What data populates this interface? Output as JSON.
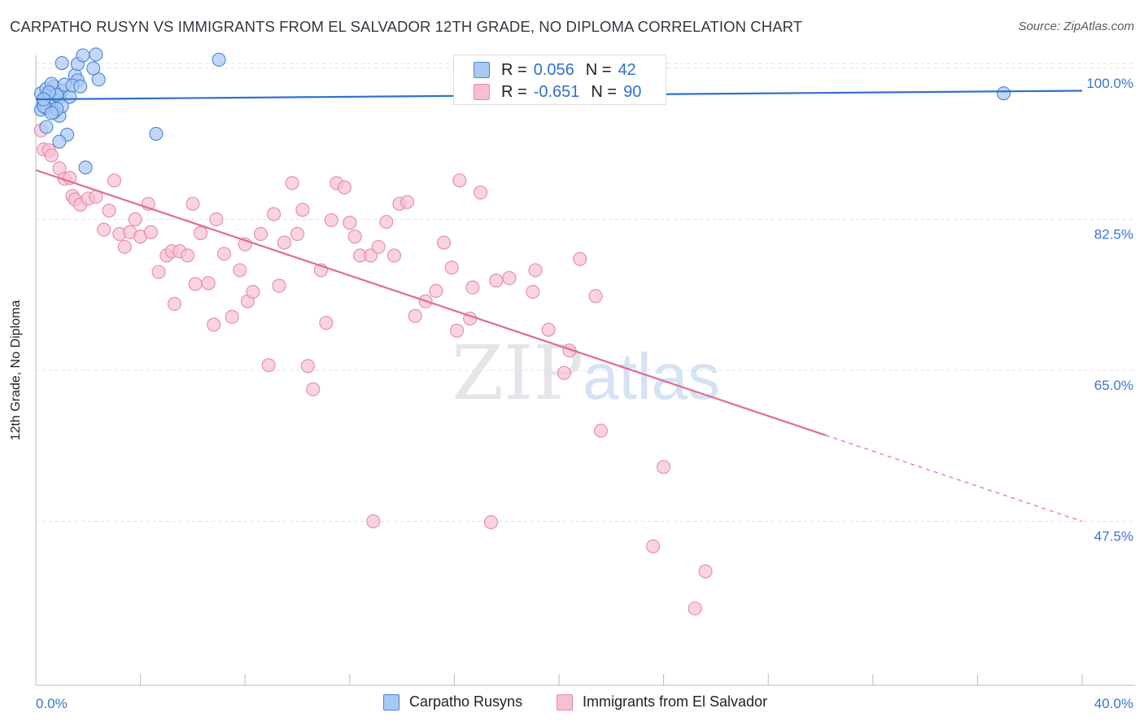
{
  "title": "CARPATHO RUSYN VS IMMIGRANTS FROM EL SALVADOR 12TH GRADE, NO DIPLOMA CORRELATION CHART",
  "source": "Source: ZipAtlas.com",
  "watermark": {
    "part1": "ZIP",
    "part2": "atlas"
  },
  "legend": {
    "r_label": "R =",
    "n_label": "N =",
    "series": [
      {
        "name": "Carpatho Rusyns",
        "r": "0.056",
        "n": "42"
      },
      {
        "name": "Immigrants from El Salvador",
        "r": "-0.651",
        "n": "90"
      }
    ]
  },
  "colors": {
    "blue_fill": "#a9c8f2",
    "blue_stroke": "#4a86d6",
    "blue_line": "#2f6fd0",
    "pink_fill": "#f6c0d2",
    "pink_stroke": "#e58aa8",
    "pink_line": "#e06b97",
    "tick_label": "#3a76cf",
    "grid": "#dcdfe4"
  },
  "chart_data": {
    "type": "scatter",
    "title": "CARPATHO RUSYN VS IMMIGRANTS FROM EL SALVADOR 12TH GRADE, NO DIPLOMA CORRELATION CHART",
    "xlabel": "",
    "ylabel": "12th Grade, No Diploma",
    "xlim": [
      0,
      40
    ],
    "ylim": [
      28.5,
      101.5
    ],
    "x_tick_labels": [
      "0.0%",
      "40.0%"
    ],
    "y_ticks": [
      100,
      82.5,
      65,
      47.5
    ],
    "y_tick_labels": [
      "100.0%",
      "82.5%",
      "65.0%",
      "47.5%"
    ],
    "grid": true,
    "legend_position": "top-center",
    "series": [
      {
        "name": "Carpatho Rusyns",
        "r": 0.056,
        "n": 42,
        "trend": {
          "x0": 0,
          "y0": 96.4,
          "x1": 40,
          "y1": 97.4,
          "dashed_from": null
        },
        "points": [
          [
            0.2,
            95.2
          ],
          [
            0.3,
            96.5
          ],
          [
            0.2,
            97.1
          ],
          [
            0.4,
            97.6
          ],
          [
            0.5,
            96.9
          ],
          [
            0.3,
            96.0
          ],
          [
            0.6,
            95.6
          ],
          [
            0.5,
            96.1
          ],
          [
            0.8,
            97.1
          ],
          [
            0.9,
            96.6
          ],
          [
            0.7,
            97.9
          ],
          [
            1.0,
            97.4
          ],
          [
            0.6,
            98.2
          ],
          [
            0.8,
            96.9
          ],
          [
            1.1,
            98.1
          ],
          [
            1.3,
            96.7
          ],
          [
            1.5,
            99.2
          ],
          [
            1.6,
            98.6
          ],
          [
            1.4,
            98.0
          ],
          [
            0.4,
            95.4
          ],
          [
            0.9,
            94.5
          ],
          [
            1.0,
            95.6
          ],
          [
            0.5,
            97.2
          ],
          [
            0.7,
            94.9
          ],
          [
            0.3,
            95.6
          ],
          [
            1.2,
            92.3
          ],
          [
            0.9,
            91.5
          ],
          [
            1.9,
            88.5
          ],
          [
            1.7,
            97.9
          ],
          [
            2.4,
            98.7
          ],
          [
            2.2,
            100.0
          ],
          [
            1.0,
            100.6
          ],
          [
            1.6,
            100.5
          ],
          [
            1.8,
            101.5
          ],
          [
            2.3,
            101.6
          ],
          [
            4.6,
            92.4
          ],
          [
            7.0,
            101.0
          ],
          [
            37.0,
            97.1
          ],
          [
            0.3,
            96.4
          ],
          [
            0.8,
            95.3
          ],
          [
            0.4,
            93.2
          ],
          [
            0.6,
            94.8
          ]
        ]
      },
      {
        "name": "Immigrants from El Salvador",
        "r": -0.651,
        "n": 90,
        "trend": {
          "x0": 0,
          "y0": 88.2,
          "x1": 40,
          "y1": 47.5,
          "dashed_from": 30.2
        },
        "points": [
          [
            0.2,
            92.8
          ],
          [
            0.3,
            90.6
          ],
          [
            0.5,
            90.5
          ],
          [
            0.6,
            89.9
          ],
          [
            0.9,
            88.4
          ],
          [
            1.1,
            87.2
          ],
          [
            1.3,
            87.3
          ],
          [
            1.4,
            85.2
          ],
          [
            1.5,
            84.8
          ],
          [
            1.7,
            84.2
          ],
          [
            2.0,
            84.9
          ],
          [
            2.3,
            85.1
          ],
          [
            2.8,
            83.5
          ],
          [
            3.0,
            87.0
          ],
          [
            2.6,
            81.3
          ],
          [
            3.2,
            80.8
          ],
          [
            3.6,
            81.0
          ],
          [
            3.8,
            82.5
          ],
          [
            3.4,
            79.3
          ],
          [
            4.0,
            80.5
          ],
          [
            4.3,
            84.3
          ],
          [
            4.4,
            81.0
          ],
          [
            4.7,
            76.4
          ],
          [
            5.0,
            78.3
          ],
          [
            5.2,
            78.8
          ],
          [
            5.3,
            72.7
          ],
          [
            5.5,
            78.8
          ],
          [
            5.8,
            78.3
          ],
          [
            6.0,
            84.3
          ],
          [
            6.1,
            75.0
          ],
          [
            6.3,
            80.9
          ],
          [
            6.6,
            75.1
          ],
          [
            6.8,
            70.3
          ],
          [
            6.9,
            82.5
          ],
          [
            7.2,
            78.5
          ],
          [
            7.5,
            71.2
          ],
          [
            7.8,
            76.6
          ],
          [
            8.0,
            79.6
          ],
          [
            8.1,
            73.0
          ],
          [
            8.3,
            74.1
          ],
          [
            8.6,
            80.8
          ],
          [
            8.9,
            65.6
          ],
          [
            9.1,
            83.1
          ],
          [
            9.3,
            74.8
          ],
          [
            9.5,
            79.8
          ],
          [
            9.8,
            86.7
          ],
          [
            10.0,
            80.8
          ],
          [
            10.2,
            83.6
          ],
          [
            10.4,
            65.5
          ],
          [
            10.6,
            62.8
          ],
          [
            10.9,
            76.6
          ],
          [
            11.1,
            70.5
          ],
          [
            11.3,
            82.4
          ],
          [
            11.5,
            86.7
          ],
          [
            11.8,
            86.2
          ],
          [
            12.0,
            82.1
          ],
          [
            12.2,
            80.5
          ],
          [
            12.4,
            78.3
          ],
          [
            12.8,
            78.3
          ],
          [
            13.1,
            79.3
          ],
          [
            13.4,
            82.2
          ],
          [
            13.7,
            78.3
          ],
          [
            13.9,
            84.3
          ],
          [
            14.2,
            84.5
          ],
          [
            14.5,
            71.3
          ],
          [
            14.9,
            73.0
          ],
          [
            15.3,
            74.2
          ],
          [
            15.6,
            79.8
          ],
          [
            16.2,
            87.0
          ],
          [
            16.1,
            69.6
          ],
          [
            16.6,
            71.0
          ],
          [
            17.0,
            85.6
          ],
          [
            16.7,
            74.6
          ],
          [
            17.6,
            75.4
          ],
          [
            17.4,
            47.4
          ],
          [
            19.1,
            76.6
          ],
          [
            19.0,
            74.1
          ],
          [
            19.6,
            69.7
          ],
          [
            20.2,
            64.7
          ],
          [
            20.4,
            67.3
          ],
          [
            20.8,
            77.9
          ],
          [
            21.4,
            73.6
          ],
          [
            21.6,
            58.0
          ],
          [
            24.0,
            53.8
          ],
          [
            12.9,
            47.5
          ],
          [
            23.6,
            44.6
          ],
          [
            25.6,
            41.7
          ],
          [
            25.2,
            37.4
          ],
          [
            18.1,
            75.7
          ],
          [
            15.9,
            76.9
          ]
        ]
      }
    ]
  }
}
